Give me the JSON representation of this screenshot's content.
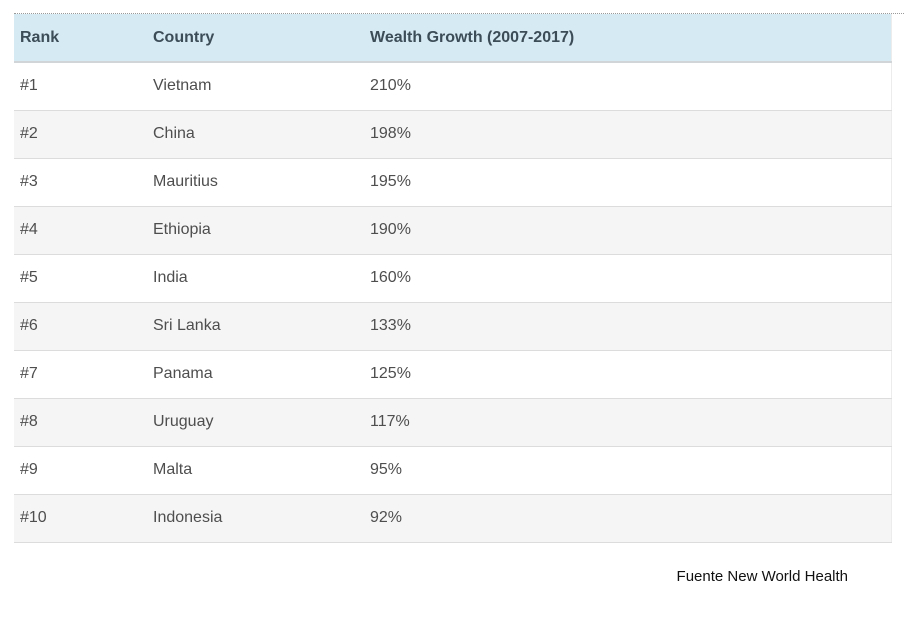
{
  "chart_data": {
    "type": "table",
    "title": "",
    "columns": [
      "Rank",
      "Country",
      "Wealth Growth (2007-2017)"
    ],
    "rows": [
      [
        "#1",
        "Vietnam",
        "210%"
      ],
      [
        "#2",
        "China",
        "198%"
      ],
      [
        "#3",
        "Mauritius",
        "195%"
      ],
      [
        "#4",
        "Ethiopia",
        "190%"
      ],
      [
        "#5",
        "India",
        "160%"
      ],
      [
        "#6",
        "Sri Lanka",
        "133%"
      ],
      [
        "#7",
        "Panama",
        "125%"
      ],
      [
        "#8",
        "Uruguay",
        "117%"
      ],
      [
        "#9",
        "Malta",
        "95%"
      ],
      [
        "#10",
        "Indonesia",
        "92%"
      ]
    ],
    "numeric": {
      "countries": [
        "Vietnam",
        "China",
        "Mauritius",
        "Ethiopia",
        "India",
        "Sri Lanka",
        "Panama",
        "Uruguay",
        "Malta",
        "Indonesia"
      ],
      "wealth_growth_percent": [
        210,
        198,
        195,
        190,
        160,
        133,
        125,
        117,
        95,
        92
      ]
    },
    "source_note": "Fuente New World Health",
    "layout_hints": {
      "zebra_striping": true,
      "header_top_border": "dotted",
      "source_note_position": "bottom-right"
    }
  },
  "colors": {
    "page_bg": "#ffffff",
    "header_bg": "#d6eaf4",
    "header_text": "#3d4d58",
    "header_border": "#d2d5d7",
    "row_text": "#4e4e4e",
    "row_alt_bg": "#f5f5f5",
    "row_border": "#dcdcdc",
    "top_dotted_border": "#9a9a9a",
    "footer_text": "#111111"
  }
}
